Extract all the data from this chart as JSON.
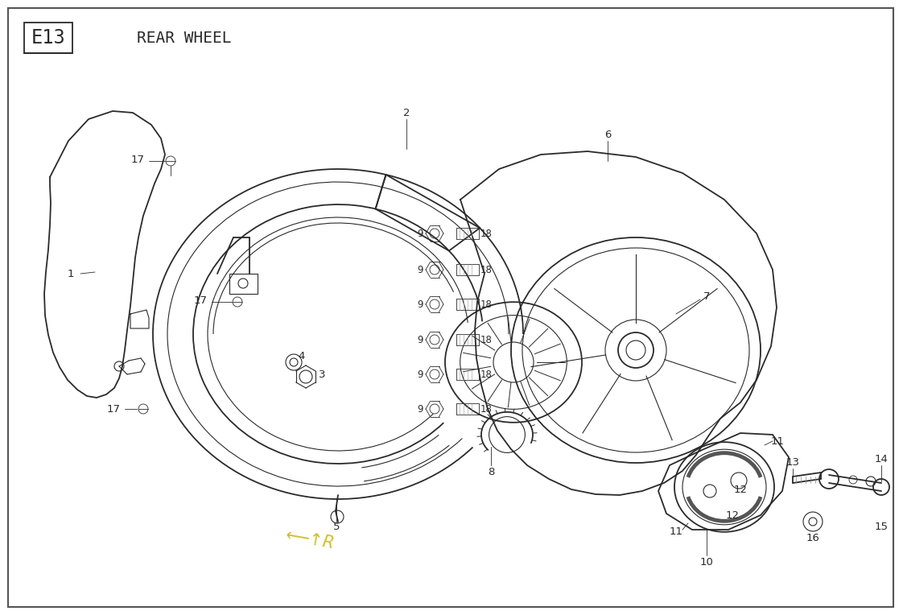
{
  "title_code": "E13",
  "title_text": "REAR WHEEL",
  "bg_color": "#ffffff",
  "line_color": "#2a2a2a",
  "figsize": [
    11.22,
    7.64
  ],
  "dpi": 100,
  "yellow_text": "#c8b400",
  "gray_line": "#888888"
}
